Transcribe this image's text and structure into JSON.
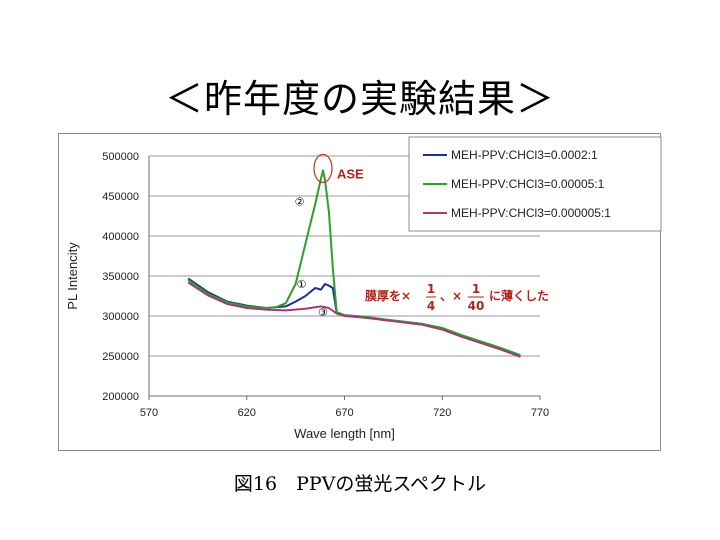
{
  "slide": {
    "title": "＜昨年度の実験結果＞",
    "caption": "図16　PPVの蛍光スペクトル"
  },
  "chart_data": {
    "type": "line",
    "xlabel": "Wave length [nm]",
    "ylabel": "PL Intencity",
    "xlim": [
      570,
      770
    ],
    "ylim": [
      200000,
      500000
    ],
    "x_ticks": [
      "570",
      "620",
      "670",
      "720",
      "770"
    ],
    "y_ticks": [
      "200000",
      "250000",
      "300000",
      "350000",
      "400000",
      "450000",
      "500000"
    ],
    "grid": "horizontal",
    "legend_position": "top-right",
    "series": [
      {
        "name": "MEH-PPV:CHCl3=0.0002:1",
        "color": "#1f2f8f",
        "points": [
          [
            590,
            347000
          ],
          [
            600,
            330000
          ],
          [
            610,
            318000
          ],
          [
            620,
            313000
          ],
          [
            630,
            310000
          ],
          [
            640,
            312000
          ],
          [
            645,
            318000
          ],
          [
            650,
            325000
          ],
          [
            655,
            335000
          ],
          [
            658,
            333000
          ],
          [
            660,
            340000
          ],
          [
            662,
            338000
          ],
          [
            664,
            335000
          ],
          [
            666,
            304000
          ],
          [
            670,
            301000
          ],
          [
            680,
            299000
          ],
          [
            690,
            295000
          ],
          [
            700,
            293000
          ],
          [
            710,
            290000
          ],
          [
            720,
            284000
          ],
          [
            730,
            275000
          ],
          [
            740,
            267000
          ],
          [
            750,
            259000
          ],
          [
            760,
            250000
          ]
        ]
      },
      {
        "name": "MEH-PPV:CHCl3=0.00005:1",
        "color": "#2aa12a",
        "points": [
          [
            590,
            345000
          ],
          [
            600,
            328000
          ],
          [
            610,
            317000
          ],
          [
            620,
            312000
          ],
          [
            630,
            310000
          ],
          [
            635,
            311000
          ],
          [
            640,
            316000
          ],
          [
            645,
            340000
          ],
          [
            650,
            390000
          ],
          [
            655,
            440000
          ],
          [
            658,
            472000
          ],
          [
            659,
            482000
          ],
          [
            660,
            470000
          ],
          [
            662,
            430000
          ],
          [
            664,
            360000
          ],
          [
            666,
            305000
          ],
          [
            670,
            301000
          ],
          [
            680,
            299000
          ],
          [
            690,
            296000
          ],
          [
            700,
            293000
          ],
          [
            710,
            290000
          ],
          [
            720,
            285000
          ],
          [
            730,
            276000
          ],
          [
            740,
            268000
          ],
          [
            750,
            260000
          ],
          [
            760,
            251000
          ]
        ]
      },
      {
        "name": "MEH-PPV:CHCl3=0.000005:1",
        "color": "#a23a78",
        "points": [
          [
            590,
            342000
          ],
          [
            600,
            326000
          ],
          [
            610,
            315000
          ],
          [
            620,
            310000
          ],
          [
            630,
            308000
          ],
          [
            640,
            307000
          ],
          [
            650,
            309000
          ],
          [
            658,
            312000
          ],
          [
            662,
            310000
          ],
          [
            666,
            303000
          ],
          [
            670,
            300000
          ],
          [
            680,
            298000
          ],
          [
            690,
            295000
          ],
          [
            700,
            292000
          ],
          [
            710,
            289000
          ],
          [
            720,
            283000
          ],
          [
            730,
            274000
          ],
          [
            740,
            266000
          ],
          [
            750,
            258000
          ],
          [
            760,
            249000
          ]
        ]
      }
    ],
    "annotations": {
      "ase_label": "ASE",
      "peak_marker_at": [
        659,
        482000
      ],
      "num1": "①",
      "num2": "②",
      "num3": "③",
      "note_prefix": "膜厚を×",
      "frac1_num": "1",
      "frac1_den": "4",
      "note_sep": "、×",
      "frac2_num": "1",
      "frac2_den": "40",
      "note_suffix": "に薄くした"
    }
  }
}
